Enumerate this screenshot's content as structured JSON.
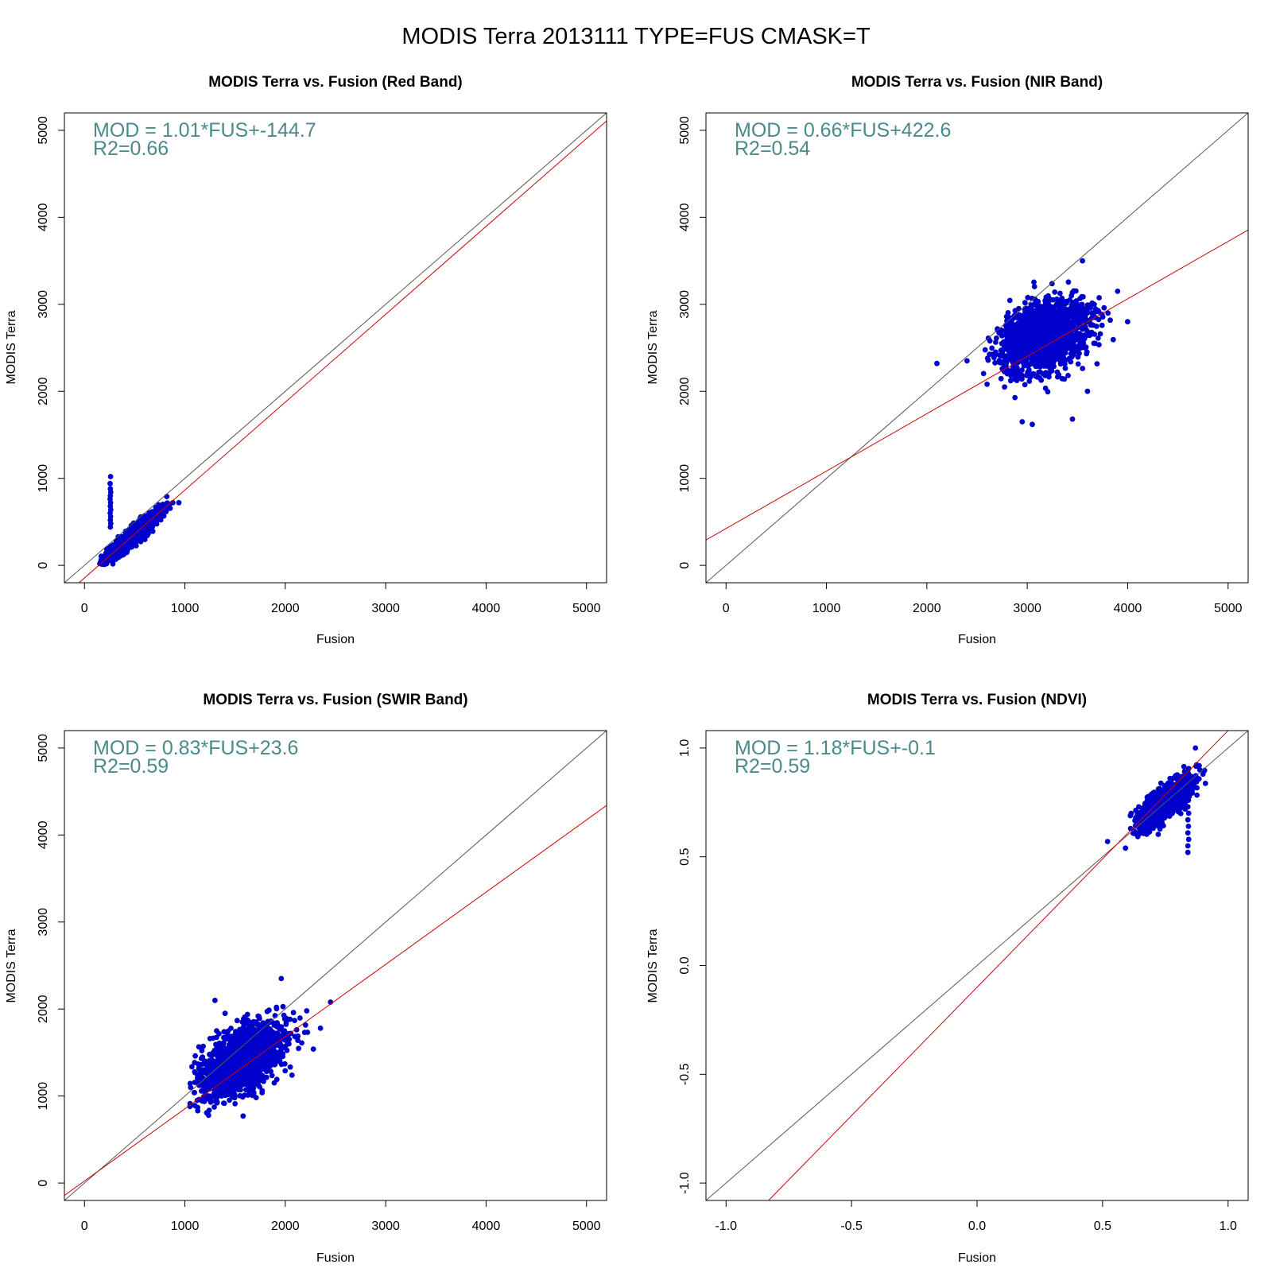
{
  "figure_title": "MODIS Terra 2013111 TYPE=FUS CMASK=T",
  "colors": {
    "points": "#0000CD",
    "fit_line": "#CC0000",
    "identity_line": "#555555",
    "annotation": "#4A8A8A"
  },
  "chart_data": [
    {
      "type": "scatter",
      "title": "MODIS Terra vs. Fusion (Red Band)",
      "xlabel": "Fusion",
      "ylabel": "MODIS Terra",
      "xlim": [
        -200,
        5200
      ],
      "ylim": [
        -200,
        5200
      ],
      "xticks": [
        "0",
        "1000",
        "2000",
        "3000",
        "4000",
        "5000"
      ],
      "yticks": [
        "0",
        "1000",
        "2000",
        "3000",
        "4000",
        "5000"
      ],
      "annotation": [
        "MOD = 1.01*FUS+-144.7",
        "R2=0.66"
      ],
      "fit": {
        "slope": 1.01,
        "intercept": -144.7
      },
      "identity_line": true,
      "cloud": {
        "center": [
          480,
          340
        ],
        "spread_along": 200,
        "spread_across": 35,
        "slope": 1.05,
        "count": 1300,
        "xrange": [
          150,
          960
        ],
        "yrange": [
          0,
          820
        ]
      },
      "extra_points": [
        [
          260,
          1020
        ],
        [
          255,
          940
        ],
        [
          258,
          880
        ],
        [
          262,
          840
        ],
        [
          258,
          800
        ],
        [
          255,
          760
        ],
        [
          260,
          720
        ],
        [
          258,
          680
        ],
        [
          262,
          640
        ],
        [
          256,
          600
        ],
        [
          260,
          560
        ],
        [
          258,
          520
        ],
        [
          262,
          480
        ],
        [
          258,
          440
        ],
        [
          880,
          720
        ],
        [
          940,
          720
        ],
        [
          820,
          790
        ]
      ]
    },
    {
      "type": "scatter",
      "title": "MODIS Terra vs. Fusion (NIR Band)",
      "xlabel": "Fusion",
      "ylabel": "MODIS Terra",
      "xlim": [
        -200,
        5200
      ],
      "ylim": [
        -200,
        5200
      ],
      "xticks": [
        "0",
        "1000",
        "2000",
        "3000",
        "4000",
        "5000"
      ],
      "yticks": [
        "0",
        "1000",
        "2000",
        "3000",
        "4000",
        "5000"
      ],
      "annotation": [
        "MOD = 0.66*FUS+422.6",
        "R2=0.54"
      ],
      "fit": {
        "slope": 0.66,
        "intercept": 422.6
      },
      "identity_line": true,
      "cloud": {
        "center": [
          3180,
          2630
        ],
        "spread_along": 240,
        "spread_across": 170,
        "slope": 0.85,
        "count": 1800,
        "xrange": [
          2550,
          4050
        ],
        "yrange": [
          1620,
          3500
        ]
      },
      "extra_points": [
        [
          2100,
          2320
        ],
        [
          2400,
          2350
        ],
        [
          3450,
          1680
        ],
        [
          3050,
          1620
        ],
        [
          2950,
          1650
        ],
        [
          3900,
          3150
        ],
        [
          4000,
          2800
        ],
        [
          3550,
          3500
        ],
        [
          3600,
          2000
        ]
      ]
    },
    {
      "type": "scatter",
      "title": "MODIS Terra vs. Fusion (SWIR Band)",
      "xlabel": "Fusion",
      "ylabel": "MODIS Terra",
      "xlim": [
        -200,
        5200
      ],
      "ylim": [
        -200,
        5200
      ],
      "xticks": [
        "0",
        "1000",
        "2000",
        "3000",
        "4000",
        "5000"
      ],
      "yticks": [
        "0",
        "1000",
        "2000",
        "3000",
        "4000",
        "5000"
      ],
      "annotation": [
        "MOD = 0.83*FUS+23.6",
        "R2=0.59"
      ],
      "fit": {
        "slope": 0.83,
        "intercept": 23.6
      },
      "identity_line": true,
      "cloud": {
        "center": [
          1560,
          1400
        ],
        "spread_along": 260,
        "spread_across": 140,
        "slope": 0.95,
        "count": 1800,
        "xrange": [
          1050,
          2450
        ],
        "yrange": [
          750,
          2350
        ]
      },
      "extra_points": [
        [
          1050,
          880
        ],
        [
          1580,
          770
        ],
        [
          1300,
          2100
        ],
        [
          1960,
          2350
        ],
        [
          2280,
          1540
        ],
        [
          2350,
          1780
        ],
        [
          2450,
          2080
        ],
        [
          1400,
          1950
        ]
      ]
    },
    {
      "type": "scatter",
      "title": "MODIS Terra vs. Fusion (NDVI)",
      "xlabel": "Fusion",
      "ylabel": "MODIS Terra",
      "xlim": [
        -1.08,
        1.08
      ],
      "ylim": [
        -1.08,
        1.08
      ],
      "xticks": [
        "-1.0",
        "-0.5",
        "0.0",
        "0.5",
        "1.0"
      ],
      "yticks": [
        "-1.0",
        "-0.5",
        "0.0",
        "0.5",
        "1.0"
      ],
      "annotation": [
        "MOD = 1.18*FUS+-0.1",
        "R2=0.59"
      ],
      "fit": {
        "slope": 1.18,
        "intercept": -0.1
      },
      "identity_line": true,
      "cloud": {
        "center": [
          0.75,
          0.75
        ],
        "spread_along": 0.07,
        "spread_across": 0.025,
        "slope": 1.1,
        "count": 1500,
        "xrange": [
          0.52,
          0.92
        ],
        "yrange": [
          0.5,
          1.0
        ]
      },
      "extra_points": [
        [
          0.84,
          0.52
        ],
        [
          0.84,
          0.55
        ],
        [
          0.843,
          0.58
        ],
        [
          0.84,
          0.61
        ],
        [
          0.842,
          0.64
        ],
        [
          0.84,
          0.67
        ],
        [
          0.843,
          0.7
        ],
        [
          0.84,
          0.73
        ],
        [
          0.842,
          0.76
        ],
        [
          0.841,
          0.79
        ],
        [
          0.838,
          0.82
        ],
        [
          0.52,
          0.57
        ],
        [
          0.9,
          0.88
        ],
        [
          0.87,
          1.0
        ]
      ]
    }
  ]
}
